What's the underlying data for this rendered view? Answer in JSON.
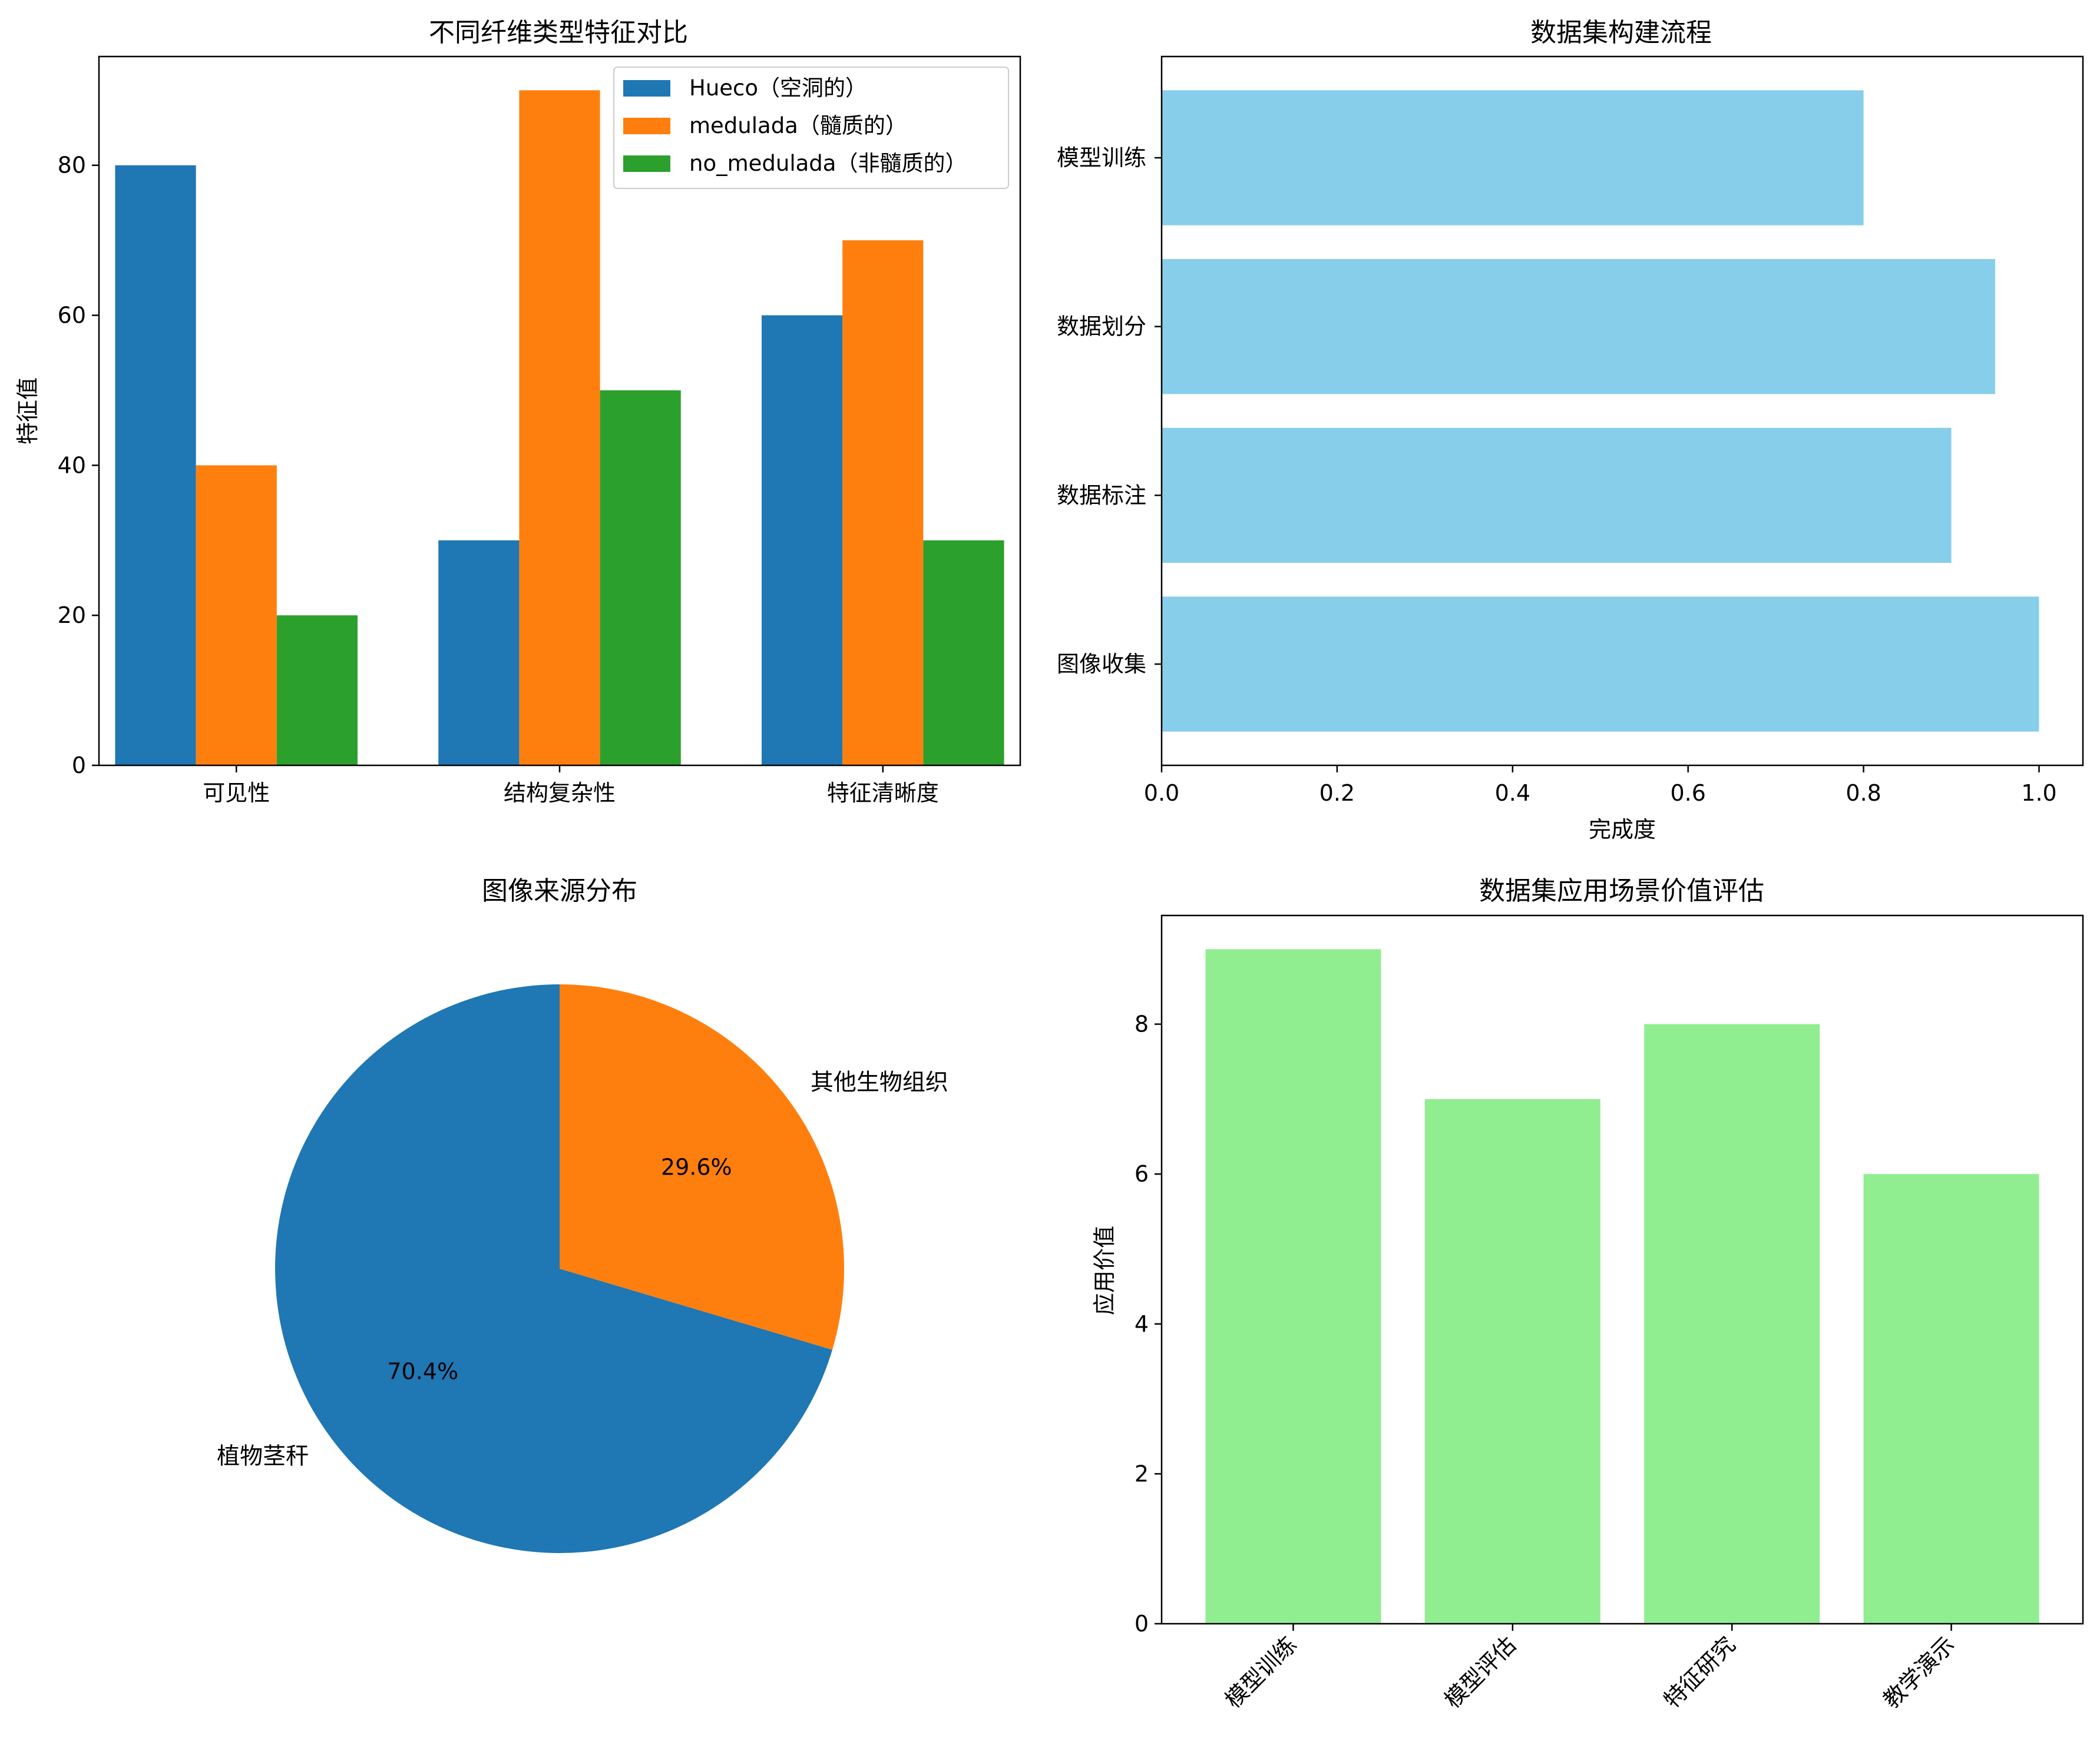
{
  "chart_data": [
    {
      "type": "bar",
      "title": "不同纤维类型特征对比",
      "xlabel": "",
      "ylabel": "特征值",
      "categories": [
        "可见性",
        "结构复杂性",
        "特征清晰度"
      ],
      "series": [
        {
          "name": "Hueco（空洞的）",
          "values": [
            80,
            30,
            60
          ],
          "color": "#1f77b4"
        },
        {
          "name": "medulada（髓质的）",
          "values": [
            40,
            90,
            70
          ],
          "color": "#ff7f0e"
        },
        {
          "name": "no_medulada（非髓质的）",
          "values": [
            20,
            50,
            30
          ],
          "color": "#2ca02c"
        }
      ],
      "ylim": [
        0,
        94.5
      ],
      "yticks": [
        0,
        20,
        40,
        60,
        80
      ],
      "legend": "top-right",
      "grid": false
    },
    {
      "type": "bar",
      "orientation": "horizontal",
      "title": "数据集构建流程",
      "xlabel": "完成度",
      "ylabel": "",
      "categories": [
        "图像收集",
        "数据标注",
        "数据划分",
        "模型训练"
      ],
      "values": [
        1.0,
        0.9,
        0.95,
        0.8
      ],
      "color": "#87ceeb",
      "xlim": [
        0,
        1.05
      ],
      "xticks": [
        0.0,
        0.2,
        0.4,
        0.6,
        0.8,
        1.0
      ],
      "grid": false
    },
    {
      "type": "pie",
      "title": "图像来源分布",
      "labels": [
        "植物茎秆",
        "其他生物组织"
      ],
      "values": [
        70.4,
        29.6
      ],
      "pct_labels": [
        "70.4%",
        "29.6%"
      ],
      "colors": [
        "#1f77b4",
        "#ff7f0e"
      ],
      "startangle": 90
    },
    {
      "type": "bar",
      "title": "数据集应用场景价值评估",
      "xlabel": "",
      "ylabel": "应用价值",
      "categories": [
        "模型训练",
        "模型评估",
        "特征研究",
        "教学演示"
      ],
      "values": [
        9,
        7,
        8,
        6
      ],
      "color": "#90ee90",
      "ylim": [
        0,
        9.45
      ],
      "yticks": [
        0,
        2,
        4,
        6,
        8
      ],
      "xtick_rotation": -45,
      "grid": false
    }
  ]
}
